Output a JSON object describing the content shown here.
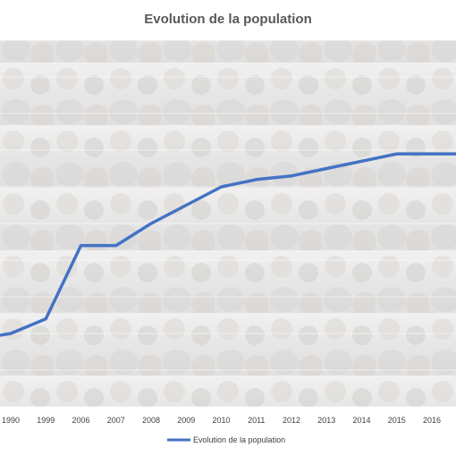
{
  "chart_data": {
    "type": "line",
    "title": "Evolution de la population",
    "xlabel": "",
    "ylabel": "",
    "categories": [
      "1990",
      "1999",
      "2006",
      "2007",
      "2008",
      "2009",
      "2010",
      "2011",
      "2012",
      "2013",
      "2014",
      "2015",
      "2016"
    ],
    "series": [
      {
        "name": "Evolution de la population",
        "color": "#4472C4",
        "values": [
          1.0,
          1.2,
          2.2,
          2.2,
          2.5,
          2.75,
          3.0,
          3.1,
          3.15,
          3.25,
          3.35,
          3.45,
          3.45
        ]
      }
    ],
    "ylim": [
      0,
      5
    ],
    "grid": true,
    "legend_position": "bottom",
    "background": "photo-of-crowd",
    "y_axis_labels_visible": false
  }
}
